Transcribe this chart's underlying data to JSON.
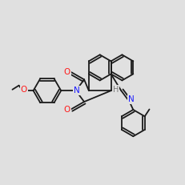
{
  "bg_color": "#e0e0e0",
  "bond_color": "#1a1a1a",
  "N_color": "#1a1aff",
  "O_color": "#ff1a1a",
  "H_color": "#7a7a7a",
  "lw": 1.3,
  "dbl_off": 0.012
}
